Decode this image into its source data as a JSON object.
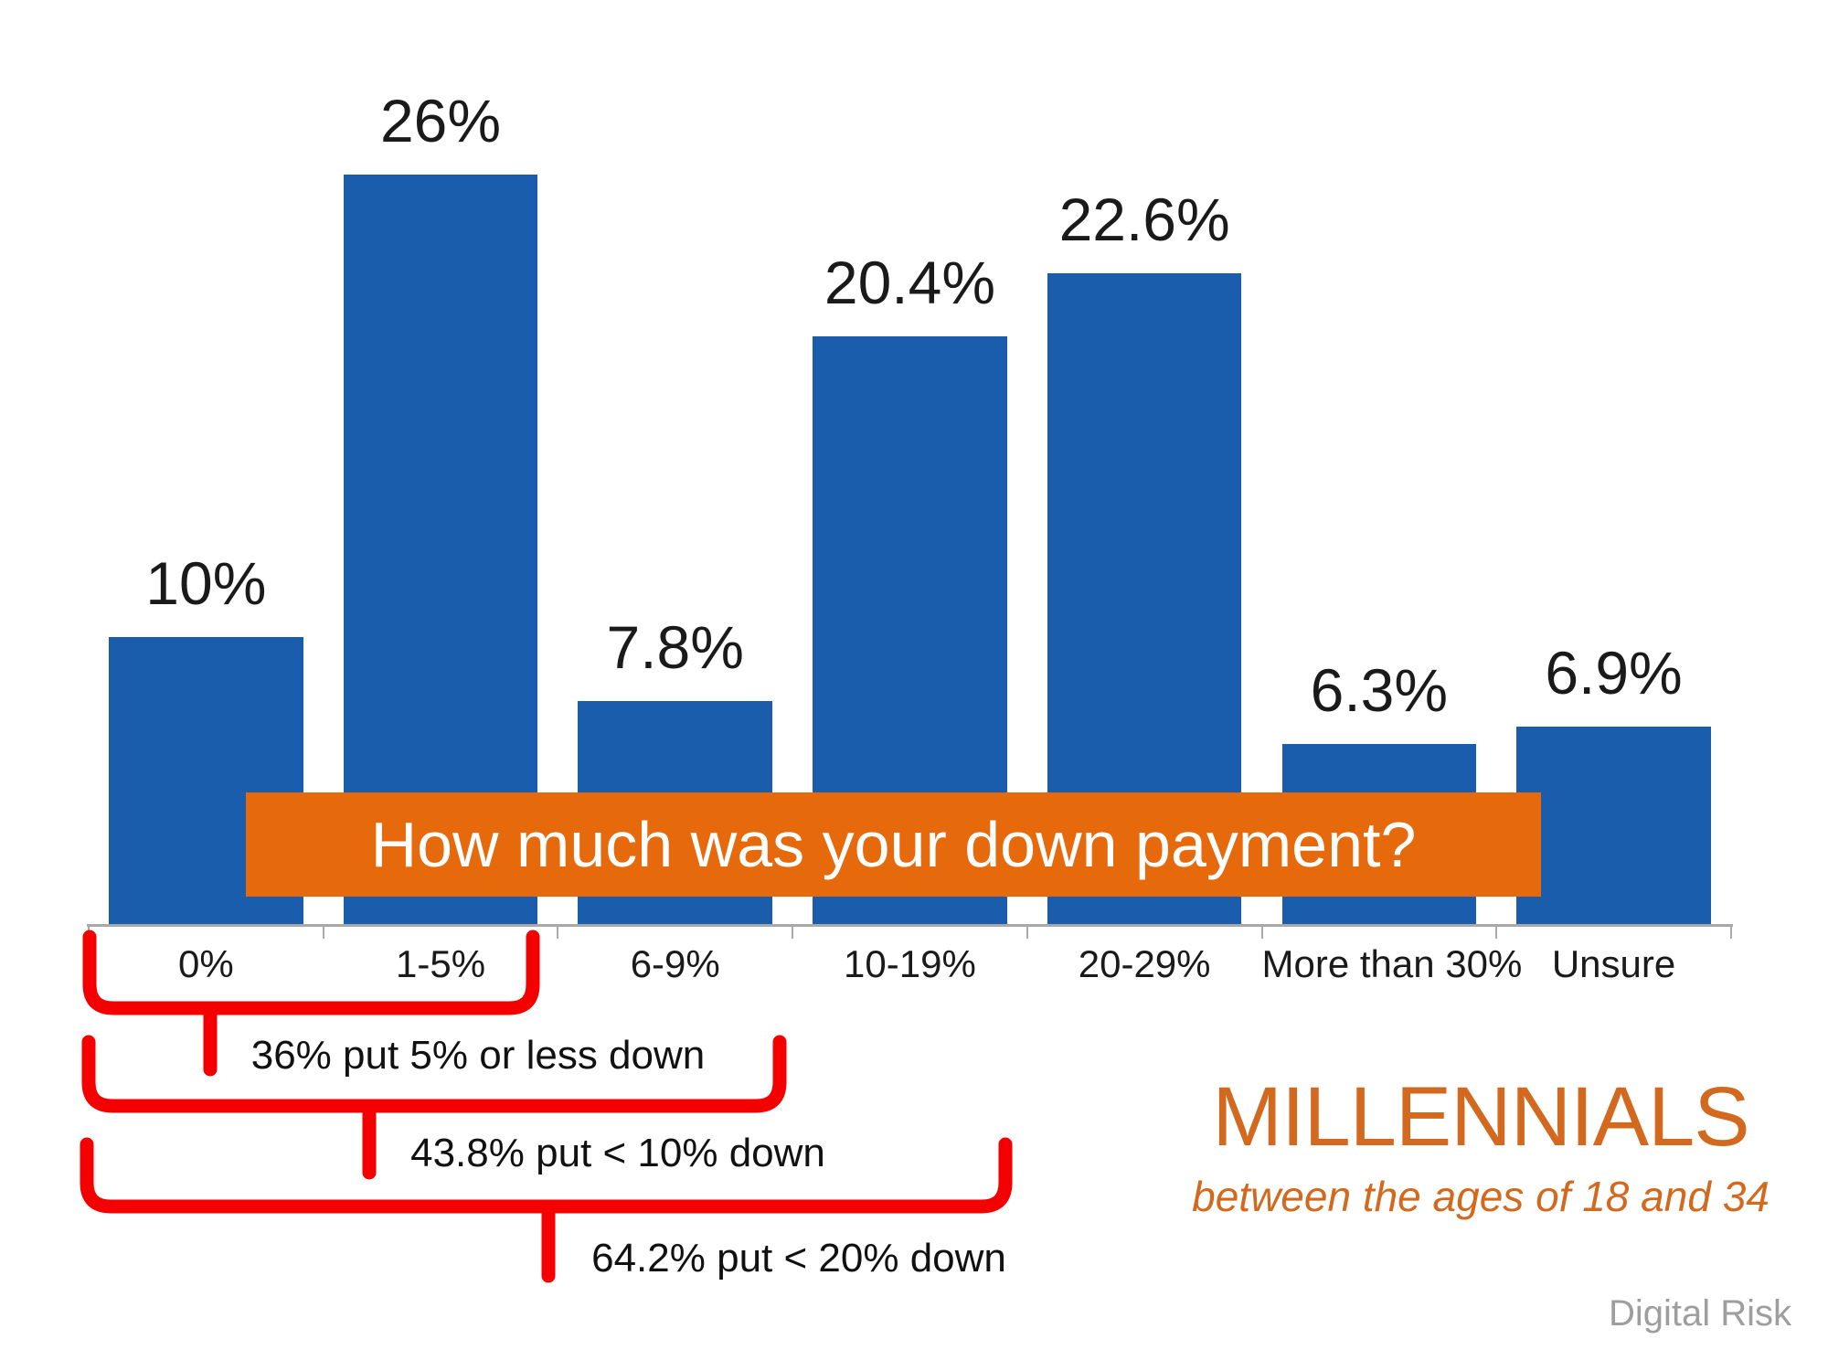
{
  "chart_data": {
    "type": "bar",
    "title": "How much was your down payment?",
    "categories": [
      "0%",
      "1-5%",
      "6-9%",
      "10-19%",
      "20-29%",
      "More than 30%",
      "Unsure"
    ],
    "values": [
      10,
      26,
      7.8,
      20.4,
      22.6,
      6.3,
      6.9
    ],
    "value_labels": [
      "10%",
      "26%",
      "7.8%",
      "20.4%",
      "22.6%",
      "6.3%",
      "6.9%"
    ],
    "xlabel": "",
    "ylabel": "",
    "ylim": [
      0,
      30
    ],
    "grid": false,
    "legend": false,
    "annotations": [
      {
        "label": "36% put 5% or less down",
        "covers": [
          "0%",
          "1-5%"
        ]
      },
      {
        "label": "43.8% put < 10% down",
        "covers": [
          "0%",
          "1-5%",
          "6-9%"
        ]
      },
      {
        "label": "64.2% put < 20% down",
        "covers": [
          "0%",
          "1-5%",
          "6-9%",
          "10-19%"
        ]
      }
    ]
  },
  "branding": {
    "audience_title": "MILLENNIALS",
    "audience_subtitle": "between the ages of 18 and 34",
    "source": "Digital Risk"
  },
  "colors": {
    "bar_blue": "#1B5DAD",
    "banner_orange": "#E6690B",
    "accent_red": "#F40000",
    "orange_text": "#D2691E",
    "label_black": "#1a1a1a",
    "axis_gray": "#A9A9A9",
    "source_gray": "#9E9E9E"
  }
}
